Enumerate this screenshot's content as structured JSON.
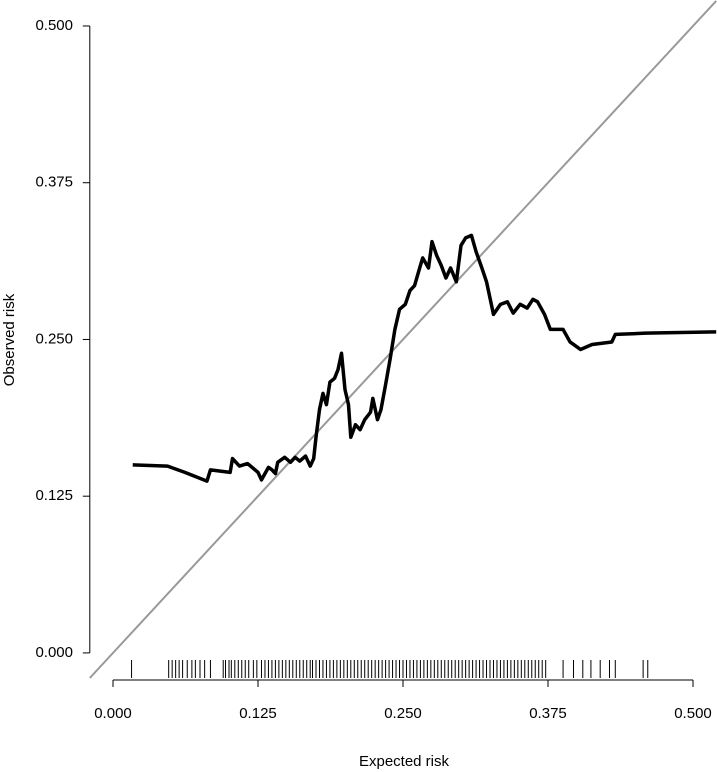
{
  "chart_data": {
    "type": "line",
    "x_label": "Expected risk",
    "y_label": "Observed risk",
    "xlim": [
      -0.02,
      0.52
    ],
    "ylim": [
      -0.02,
      0.52
    ],
    "xticks": [
      {
        "value": 0,
        "label": "0.000"
      },
      0.125,
      {
        "value": 0.25,
        "label": "0.250"
      },
      0.375,
      {
        "value": 0.5,
        "label": "0.500"
      }
    ],
    "yticks": [
      {
        "value": 0,
        "label": "0.000"
      },
      0.125,
      {
        "value": 0.25,
        "label": "0.250"
      },
      0.375,
      {
        "value": 0.5,
        "label": "0.500"
      }
    ],
    "diagonal": true,
    "diagonal_color": "#999999",
    "x": [
      0.017,
      0.047,
      0.062,
      0.081,
      0.084,
      0.101,
      0.103,
      0.109,
      0.116,
      0.125,
      0.128,
      0.134,
      0.137,
      0.14,
      0.142,
      0.148,
      0.153,
      0.157,
      0.161,
      0.166,
      0.17,
      0.173,
      0.175,
      0.178,
      0.181,
      0.184,
      0.187,
      0.191,
      0.194,
      0.197,
      0.2,
      0.203,
      0.205,
      0.209,
      0.213,
      0.217,
      0.222,
      0.224,
      0.228,
      0.231,
      0.235,
      0.239,
      0.243,
      0.247,
      0.252,
      0.256,
      0.26,
      0.265,
      0.267,
      0.272,
      0.275,
      0.279,
      0.283,
      0.287,
      0.291,
      0.296,
      0.3,
      0.304,
      0.309,
      0.313,
      0.318,
      0.322,
      0.328,
      0.334,
      0.34,
      0.345,
      0.351,
      0.357,
      0.362,
      0.366,
      0.372,
      0.377,
      0.388,
      0.394,
      0.403,
      0.413,
      0.43,
      0.433,
      0.459,
      0.52
    ],
    "series": [
      {
        "color": "#000000",
        "values": [
          0.15,
          0.149,
          0.144,
          0.137,
          0.146,
          0.144,
          0.155,
          0.149,
          0.151,
          0.144,
          0.138,
          0.148,
          0.146,
          0.143,
          0.152,
          0.156,
          0.152,
          0.156,
          0.153,
          0.157,
          0.149,
          0.155,
          0.172,
          0.194,
          0.207,
          0.198,
          0.216,
          0.219,
          0.226,
          0.239,
          0.21,
          0.198,
          0.172,
          0.182,
          0.178,
          0.186,
          0.192,
          0.203,
          0.186,
          0.194,
          0.214,
          0.235,
          0.258,
          0.274,
          0.278,
          0.289,
          0.293,
          0.309,
          0.315,
          0.307,
          0.328,
          0.317,
          0.309,
          0.299,
          0.307,
          0.296,
          0.325,
          0.331,
          0.333,
          0.32,
          0.307,
          0.296,
          0.27,
          0.278,
          0.28,
          0.271,
          0.278,
          0.275,
          0.282,
          0.28,
          0.27,
          0.258,
          0.258,
          0.248,
          0.242,
          0.246,
          0.248,
          0.254,
          0.255,
          0.256
        ]
      }
    ],
    "rug": [
      0.016,
      0.048,
      0.051,
      0.054,
      0.057,
      0.06,
      0.064,
      0.068,
      0.071,
      0.075,
      0.079,
      0.084,
      0.095,
      0.097,
      0.1,
      0.102,
      0.105,
      0.108,
      0.111,
      0.114,
      0.117,
      0.121,
      0.124,
      0.128,
      0.131,
      0.134,
      0.137,
      0.14,
      0.143,
      0.146,
      0.149,
      0.152,
      0.155,
      0.158,
      0.161,
      0.164,
      0.167,
      0.17,
      0.172,
      0.175,
      0.178,
      0.181,
      0.184,
      0.187,
      0.19,
      0.193,
      0.196,
      0.199,
      0.202,
      0.205,
      0.208,
      0.211,
      0.214,
      0.217,
      0.22,
      0.223,
      0.226,
      0.229,
      0.232,
      0.235,
      0.238,
      0.241,
      0.244,
      0.247,
      0.25,
      0.253,
      0.256,
      0.259,
      0.262,
      0.265,
      0.268,
      0.271,
      0.274,
      0.277,
      0.28,
      0.283,
      0.286,
      0.289,
      0.292,
      0.295,
      0.298,
      0.301,
      0.304,
      0.307,
      0.31,
      0.313,
      0.316,
      0.319,
      0.322,
      0.325,
      0.328,
      0.331,
      0.334,
      0.337,
      0.34,
      0.343,
      0.346,
      0.349,
      0.352,
      0.355,
      0.358,
      0.361,
      0.364,
      0.367,
      0.37,
      0.373,
      0.388,
      0.397,
      0.405,
      0.412,
      0.42,
      0.428,
      0.433,
      0.457,
      0.461
    ]
  }
}
